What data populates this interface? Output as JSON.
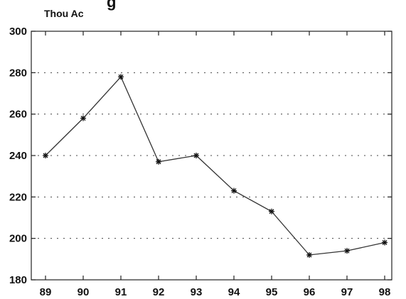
{
  "chart_data": {
    "type": "line",
    "title_fragment": "g",
    "ylabel": "Thou Ac",
    "xlabel": "",
    "categories": [
      "89",
      "90",
      "91",
      "92",
      "93",
      "94",
      "95",
      "96",
      "97",
      "98"
    ],
    "series": [
      {
        "values": [
          240,
          258,
          278,
          237,
          240,
          223,
          213,
          192,
          194,
          198
        ]
      }
    ],
    "ylim": [
      180,
      300
    ],
    "yticks": [
      180,
      200,
      220,
      240,
      260,
      280,
      300
    ],
    "grid": "horizontal-dotted",
    "marker": "asterisk",
    "colors": {
      "line": "#333333",
      "axis": "#222222",
      "grid": "#444444"
    }
  }
}
